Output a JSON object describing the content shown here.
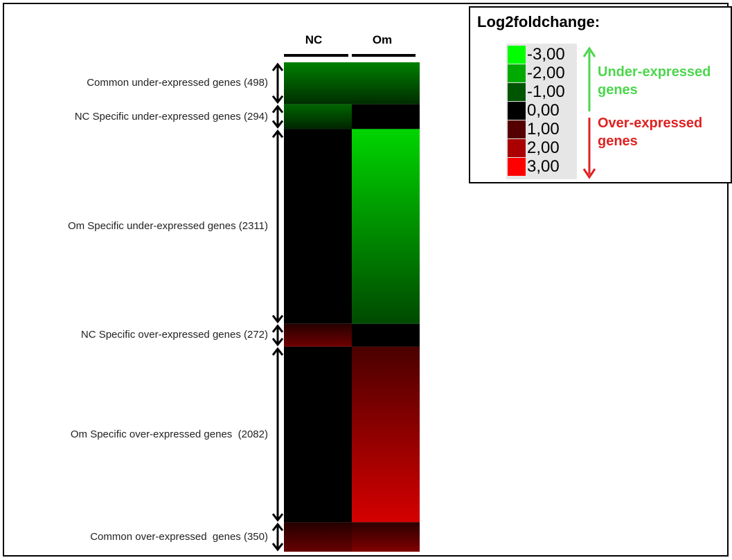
{
  "chart_data": {
    "type": "heatmap",
    "columns": [
      "NC",
      "Om"
    ],
    "groups": [
      {
        "label": "Common under-expressed genes (498)",
        "count": 498,
        "nc": -1.5,
        "om": -1.5
      },
      {
        "label": "NC Specific under-expressed genes (294)",
        "count": 294,
        "nc": -1.2,
        "om": 0
      },
      {
        "label": "Om Specific under-expressed genes (2311)",
        "count": 2311,
        "nc": 0,
        "om": -2.5
      },
      {
        "label": "NC Specific over-expressed genes (272)",
        "count": 272,
        "nc": 1.3,
        "om": 0
      },
      {
        "label": "Om Specific over-expressed genes  (2082)",
        "count": 2082,
        "nc": 0,
        "om": 2.5
      },
      {
        "label": "Common over-expressed  genes (350)",
        "count": 350,
        "nc": 1.2,
        "om": 1.5
      }
    ],
    "legend": {
      "title": "Log2foldchange:",
      "values": [
        "-3,00",
        "-2,00",
        "-1,00",
        "0,00",
        "1,00",
        "2,00",
        "3,00"
      ],
      "colors": [
        "#00ff00",
        "#00aa00",
        "#005500",
        "#000000",
        "#550000",
        "#aa0000",
        "#ff0000"
      ],
      "under_label": "Under-expressed genes",
      "over_label": "Over-expressed genes",
      "under_color": "#4cd64c",
      "over_color": "#e02020"
    }
  }
}
